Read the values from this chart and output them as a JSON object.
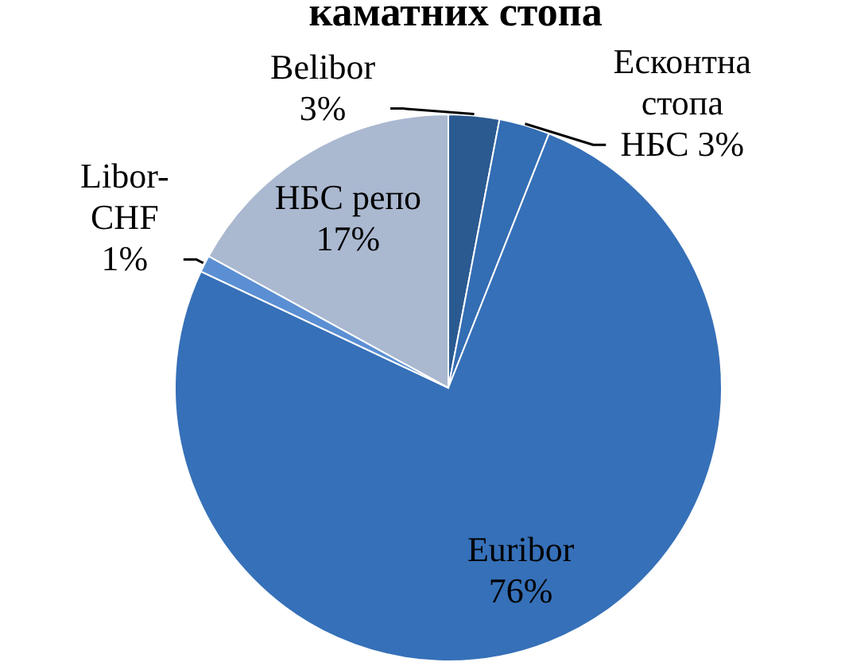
{
  "chart_data": {
    "type": "pie",
    "title": "каматних стопа",
    "categories": [
      "Belibor",
      "Есконтна стопа НБС",
      "Euribor",
      "Libor-CHF",
      "НБС репо"
    ],
    "values": [
      3,
      3,
      76,
      1,
      17
    ],
    "value_labels": [
      "3%",
      "3%",
      "76%",
      "1%",
      "17%"
    ],
    "colors": [
      "#2b5a91",
      "#336db3",
      "#3670b8",
      "#5b8fd3",
      "#aab8d0"
    ]
  }
}
